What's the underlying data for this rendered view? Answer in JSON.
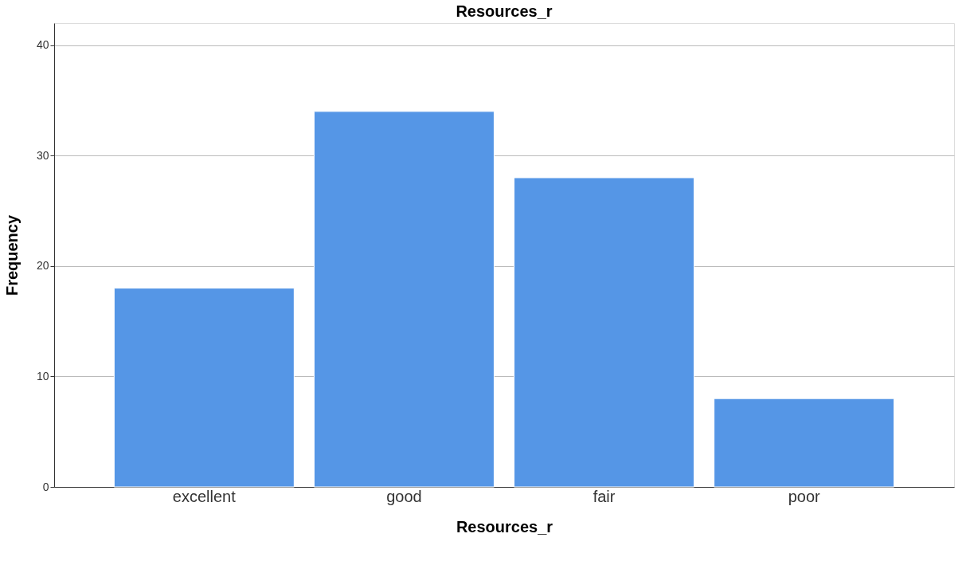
{
  "chart_data": {
    "type": "bar",
    "title": "Resources_r",
    "xlabel": "Resources_r",
    "ylabel": "Frequency",
    "categories": [
      "excellent",
      "good",
      "fair",
      "poor"
    ],
    "values": [
      18,
      34,
      28,
      8
    ],
    "color": "#5596e6",
    "ylim": [
      0,
      42
    ],
    "yticks": [
      0,
      10,
      20,
      30,
      40
    ],
    "grid": "y"
  }
}
